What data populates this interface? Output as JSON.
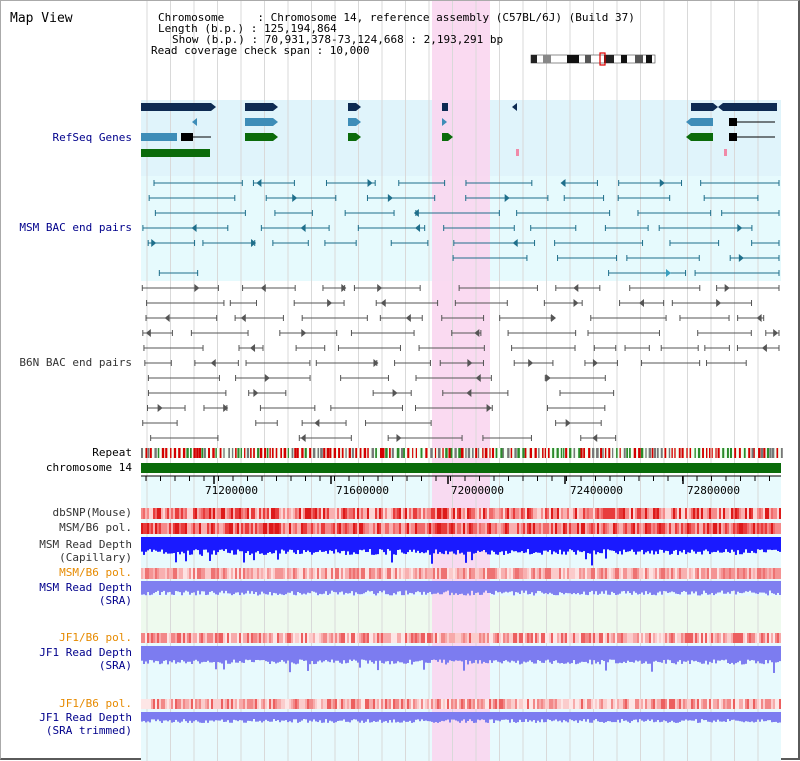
{
  "view_title": "Map View",
  "info": {
    "chromosome_line": "Chromosome     : Chromosome 14, reference assembly (C57BL/6J) (Build 37)",
    "length_line": "Length (b.p.) : 125,194,864",
    "show_line": "Show (b.p.) : 70,931,378-73,124,668 : 2,193,291 bp",
    "coverage_line": "Read coverage check span : 10,000"
  },
  "tracks": {
    "refseq": "RefSeq Genes",
    "msm_bac": "MSM BAC end pairs",
    "b6n_bac": "B6N BAC end pairs",
    "repeat": "Repeat",
    "chromosome": "chromosome 14",
    "dbsnp": "dbSNP(Mouse)",
    "msm_pol1": "MSM/B6 pol.",
    "msm_depth_cap_1": "MSM Read Depth",
    "msm_depth_cap_2": "(Capillary)",
    "msm_pol2": "MSM/B6 pol.",
    "msm_depth_sra_1": "MSM Read Depth",
    "msm_depth_sra_2": "(SRA)",
    "jf1_pol1": "JF1/B6 pol.",
    "jf1_depth_1": "JF1 Read Depth",
    "jf1_depth_2": "(SRA)",
    "jf1_pol2": "JF1/B6 pol.",
    "jf1_trim_1": "JF1 Read Depth",
    "jf1_trim_2": "(SRA trimmed)"
  },
  "axis": {
    "ticks": [
      "71200000",
      "71600000",
      "72000000",
      "72400000",
      "72800000"
    ]
  },
  "colors": {
    "highlight": "#f9d6f0",
    "refseq_bg": "#e0f4fb",
    "msm_bg": "#e6fafd",
    "gene_dark": "#0d2a52",
    "gene_mid": "#3e8db8",
    "gene_green": "#0b6b0b",
    "bac_teal": "#1f6f8b",
    "chrom_green": "#0a6b0a",
    "label_navy": "#00008b",
    "label_orange": "#e68a00"
  }
}
